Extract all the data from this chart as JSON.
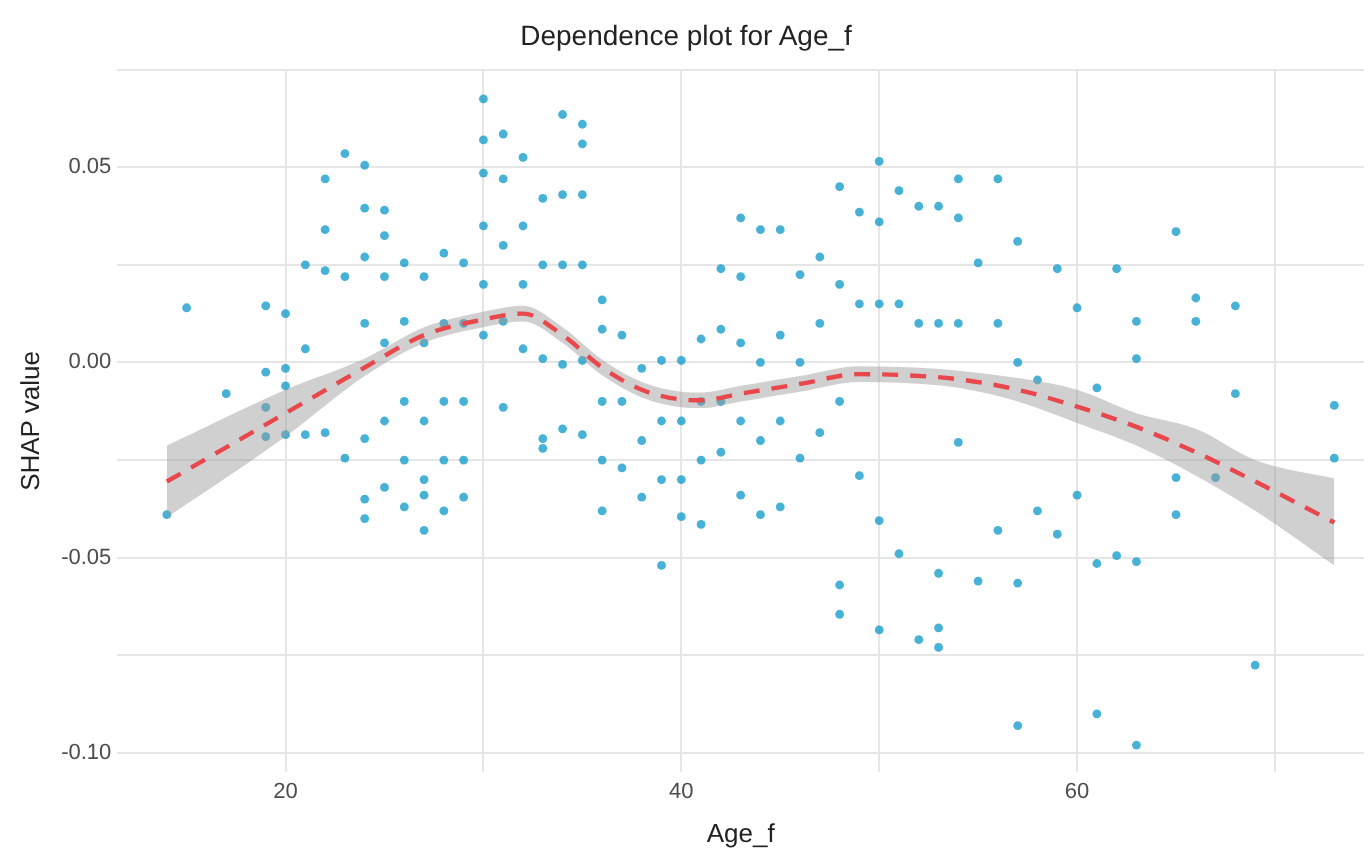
{
  "chart_data": {
    "type": "scatter",
    "title": "Dependence plot for Age_f",
    "xlabel": "Age_f",
    "ylabel": "SHAP value",
    "xlim": [
      11.5,
      74.5
    ],
    "ylim": [
      -0.105,
      0.075
    ],
    "xticks": [
      20,
      {
        "value": 30,
        "label": null
      },
      40,
      {
        "value": 50,
        "label": null
      },
      60,
      {
        "value": 70,
        "label": null
      }
    ],
    "yticks": [
      {
        "value": -0.1,
        "label": "-0.10"
      },
      {
        "value": -0.075,
        "label": null
      },
      {
        "value": -0.05,
        "label": "-0.05"
      },
      {
        "value": -0.025,
        "label": null
      },
      {
        "value": 0,
        "label": "0.00"
      },
      {
        "value": 0.025,
        "label": null
      },
      {
        "value": 0.05,
        "label": "0.05"
      },
      {
        "value": 0.075,
        "label": null
      }
    ],
    "grid": true,
    "legend": false,
    "series": [
      {
        "color": "#1a9fcc",
        "marker": "circle",
        "x": [
          14,
          15,
          17,
          19,
          19,
          19,
          19,
          20,
          20,
          20,
          20,
          21,
          21,
          21,
          22,
          22,
          22,
          22,
          23,
          23,
          23,
          24,
          24,
          24,
          24,
          24,
          24,
          24,
          25,
          25,
          25,
          25,
          25,
          25,
          26,
          26,
          26,
          26,
          26,
          27,
          27,
          27,
          27,
          27,
          27,
          28,
          28,
          28,
          28,
          28,
          29,
          29,
          29,
          29,
          29,
          30,
          30,
          30,
          30,
          30,
          30,
          31,
          31,
          31,
          31,
          31,
          32,
          32,
          32,
          32,
          33,
          33,
          33,
          33,
          33,
          34,
          34,
          34,
          34,
          34,
          35,
          35,
          35,
          35,
          35,
          35,
          36,
          36,
          36,
          36,
          36,
          37,
          37,
          37,
          38,
          38,
          38,
          39,
          39,
          39,
          39,
          40,
          40,
          40,
          40,
          41,
          41,
          41,
          41,
          42,
          42,
          42,
          42,
          43,
          43,
          43,
          43,
          43,
          44,
          44,
          44,
          44,
          45,
          45,
          45,
          45,
          46,
          46,
          46,
          47,
          47,
          47,
          48,
          48,
          48,
          48,
          48,
          49,
          49,
          49,
          50,
          50,
          50,
          50,
          50,
          51,
          51,
          51,
          52,
          52,
          52,
          53,
          53,
          53,
          53,
          53,
          54,
          54,
          54,
          54,
          55,
          55,
          56,
          56,
          56,
          57,
          57,
          57,
          57,
          58,
          58,
          59,
          59,
          60,
          60,
          61,
          61,
          61,
          62,
          62,
          63,
          63,
          63,
          63,
          65,
          65,
          65,
          66,
          66,
          67,
          68,
          68,
          69,
          73,
          73
        ],
        "values": [
          -0.039,
          0.014,
          -0.008,
          0.0145,
          -0.0025,
          -0.0115,
          -0.019,
          0.0125,
          -0.0015,
          -0.006,
          -0.0185,
          0.025,
          0.0035,
          -0.0185,
          0.047,
          0.034,
          0.0235,
          -0.018,
          0.0535,
          0.022,
          -0.0245,
          0.0505,
          0.0395,
          0.027,
          0.01,
          -0.0195,
          -0.035,
          -0.04,
          0.039,
          0.0325,
          0.022,
          0.005,
          -0.015,
          -0.032,
          0.0255,
          0.0105,
          -0.01,
          -0.025,
          -0.037,
          0.022,
          0.005,
          -0.015,
          -0.03,
          -0.043,
          -0.034,
          0.028,
          0.01,
          -0.01,
          -0.025,
          -0.038,
          0.0255,
          0.01,
          -0.01,
          -0.025,
          -0.0345,
          0.0675,
          0.057,
          0.0485,
          0.035,
          0.02,
          0.007,
          0.0585,
          0.047,
          0.03,
          0.0105,
          -0.0115,
          0.0525,
          0.035,
          0.02,
          0.0035,
          0.042,
          0.025,
          0.001,
          -0.0195,
          -0.022,
          0.0635,
          0.043,
          0.025,
          -0.0005,
          -0.017,
          0.061,
          0.056,
          0.043,
          0.025,
          0.0005,
          -0.0185,
          0.016,
          0.0085,
          -0.01,
          -0.025,
          -0.038,
          0.007,
          -0.01,
          -0.027,
          -0.0015,
          -0.02,
          -0.0345,
          0.0005,
          -0.015,
          -0.03,
          -0.052,
          0.0005,
          -0.015,
          -0.03,
          -0.0395,
          0.006,
          -0.01,
          -0.025,
          -0.0415,
          0.024,
          0.0085,
          -0.01,
          -0.023,
          0.037,
          0.022,
          0.005,
          -0.015,
          -0.034,
          0.034,
          0,
          -0.02,
          -0.039,
          0.034,
          0.007,
          -0.015,
          -0.037,
          0.0225,
          0,
          -0.0245,
          0.027,
          0.01,
          -0.018,
          0.045,
          0.02,
          -0.01,
          -0.057,
          -0.0645,
          0.0385,
          0.015,
          -0.029,
          0.0515,
          0.036,
          0.015,
          -0.0405,
          -0.0685,
          0.044,
          0.015,
          -0.049,
          0.04,
          0.01,
          -0.071,
          0.04,
          0.01,
          -0.054,
          -0.068,
          -0.073,
          0.047,
          0.037,
          0.01,
          -0.0205,
          0.0255,
          -0.056,
          0.047,
          0.01,
          -0.043,
          0.031,
          0,
          -0.0565,
          -0.093,
          -0.0045,
          -0.038,
          0.024,
          -0.044,
          0.014,
          -0.034,
          -0.0065,
          -0.0515,
          -0.09,
          0.024,
          -0.0495,
          0.0105,
          0.001,
          -0.051,
          -0.098,
          0.0335,
          -0.0295,
          -0.039,
          0.0165,
          0.0105,
          -0.0295,
          0.0145,
          -0.008,
          -0.0775,
          -0.011,
          -0.0245
        ]
      },
      {
        "type": "line",
        "color": "#e8474c",
        "marker": "none",
        "line_style": "dashed",
        "x": [
          14,
          20,
          24,
          27,
          30,
          32,
          34,
          36,
          38,
          40,
          41,
          43,
          46,
          49,
          51,
          54,
          57,
          60,
          63,
          66,
          69,
          73
        ],
        "values": [
          -0.0305,
          -0.013,
          -0.0013,
          0.007,
          0.011,
          0.0125,
          0.007,
          -0.0013,
          -0.007,
          -0.0095,
          -0.0097,
          -0.008,
          -0.0055,
          -0.003,
          -0.0032,
          -0.0043,
          -0.007,
          -0.0113,
          -0.0165,
          -0.023,
          -0.0305,
          -0.041
        ],
        "lower": [
          -0.0397,
          -0.019,
          -0.0035,
          0.005,
          0.009,
          0.0105,
          0.005,
          -0.0033,
          -0.009,
          -0.0115,
          -0.0117,
          -0.01,
          -0.0075,
          -0.005,
          -0.0052,
          -0.0065,
          -0.01,
          -0.0155,
          -0.0213,
          -0.029,
          -0.038,
          -0.052
        ],
        "upper": [
          -0.0213,
          -0.007,
          0.001,
          0.009,
          0.013,
          0.0145,
          0.009,
          0.0007,
          -0.005,
          -0.0075,
          -0.0077,
          -0.006,
          -0.0035,
          -0.001,
          -0.0012,
          -0.0021,
          -0.004,
          -0.007,
          -0.013,
          -0.017,
          -0.025,
          -0.0297
        ]
      }
    ]
  }
}
